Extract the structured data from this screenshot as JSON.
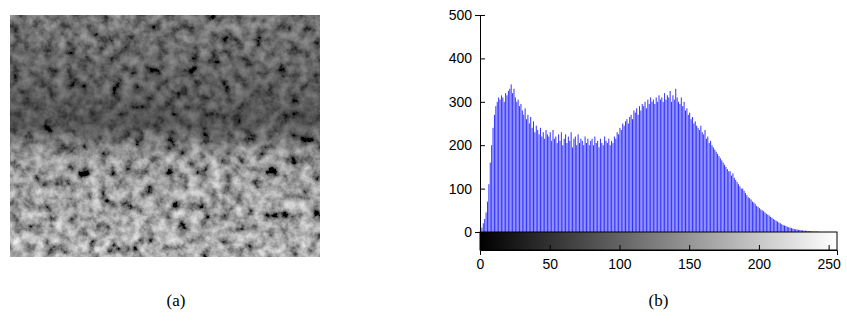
{
  "image_panel": {
    "caption": "(a)"
  },
  "chart_data": {
    "type": "histogram",
    "caption": "(b)",
    "color": "#3333ff",
    "xlim": [
      0,
      256
    ],
    "xticks": [
      0,
      50,
      100,
      150,
      200,
      250
    ],
    "ylim": [
      0,
      500
    ],
    "yticks": [
      0,
      100,
      200,
      300,
      400,
      500
    ],
    "bins": [
      0,
      1,
      2,
      3,
      4,
      5,
      6,
      7,
      8,
      9,
      10,
      11,
      12,
      13,
      14,
      15,
      16,
      17,
      18,
      19,
      20,
      21,
      22,
      23,
      24,
      25,
      26,
      27,
      28,
      29,
      30,
      31,
      32,
      33,
      34,
      35,
      36,
      37,
      38,
      39,
      40,
      41,
      42,
      43,
      44,
      45,
      46,
      47,
      48,
      49,
      50,
      51,
      52,
      53,
      54,
      55,
      56,
      57,
      58,
      59,
      60,
      61,
      62,
      63,
      64,
      65,
      66,
      67,
      68,
      69,
      70,
      71,
      72,
      73,
      74,
      75,
      76,
      77,
      78,
      79,
      80,
      81,
      82,
      83,
      84,
      85,
      86,
      87,
      88,
      89,
      90,
      91,
      92,
      93,
      94,
      95,
      96,
      97,
      98,
      99,
      100,
      101,
      102,
      103,
      104,
      105,
      106,
      107,
      108,
      109,
      110,
      111,
      112,
      113,
      114,
      115,
      116,
      117,
      118,
      119,
      120,
      121,
      122,
      123,
      124,
      125,
      126,
      127,
      128,
      129,
      130,
      131,
      132,
      133,
      134,
      135,
      136,
      137,
      138,
      139,
      140,
      141,
      142,
      143,
      144,
      145,
      146,
      147,
      148,
      149,
      150,
      151,
      152,
      153,
      154,
      155,
      156,
      157,
      158,
      159,
      160,
      161,
      162,
      163,
      164,
      165,
      166,
      167,
      168,
      169,
      170,
      171,
      172,
      173,
      174,
      175,
      176,
      177,
      178,
      179,
      180,
      181,
      182,
      183,
      184,
      185,
      186,
      187,
      188,
      189,
      190,
      191,
      192,
      193,
      194,
      195,
      196,
      197,
      198,
      199,
      200,
      201,
      202,
      203,
      204,
      205,
      206,
      207,
      208,
      209,
      210,
      211,
      212,
      213,
      214,
      215,
      216,
      217,
      218,
      219,
      220,
      221,
      222,
      223,
      224,
      225,
      226,
      227,
      228,
      229,
      230,
      231,
      232,
      233,
      234,
      235,
      236,
      237,
      238,
      239,
      240,
      241,
      242,
      243,
      244,
      245,
      246,
      247,
      248,
      249,
      250,
      251,
      252,
      253,
      254,
      255,
      256
    ],
    "values": [
      5,
      10,
      20,
      30,
      45,
      70,
      110,
      160,
      200,
      240,
      270,
      290,
      300,
      310,
      305,
      315,
      310,
      300,
      320,
      315,
      325,
      330,
      340,
      320,
      330,
      310,
      300,
      305,
      290,
      295,
      280,
      270,
      285,
      260,
      270,
      250,
      265,
      240,
      255,
      230,
      245,
      235,
      225,
      240,
      220,
      230,
      215,
      235,
      225,
      220,
      230,
      210,
      235,
      215,
      220,
      205,
      225,
      210,
      230,
      200,
      215,
      225,
      205,
      220,
      210,
      230,
      195,
      215,
      220,
      200,
      225,
      205,
      215,
      210,
      200,
      220,
      205,
      215,
      200,
      210,
      215,
      200,
      220,
      205,
      210,
      195,
      215,
      205,
      200,
      220,
      210,
      205,
      215,
      200,
      210,
      205,
      220,
      215,
      230,
      225,
      240,
      235,
      250,
      245,
      255,
      260,
      250,
      265,
      270,
      260,
      280,
      275,
      285,
      270,
      290,
      280,
      295,
      290,
      300,
      285,
      305,
      295,
      310,
      300,
      305,
      295,
      310,
      300,
      315,
      305,
      310,
      300,
      320,
      305,
      315,
      310,
      325,
      300,
      315,
      305,
      330,
      310,
      300,
      295,
      310,
      290,
      300,
      280,
      285,
      270,
      275,
      260,
      265,
      250,
      255,
      245,
      240,
      235,
      245,
      230,
      225,
      235,
      215,
      220,
      205,
      210,
      200,
      195,
      190,
      185,
      180,
      175,
      170,
      165,
      160,
      155,
      150,
      145,
      140,
      140,
      130,
      135,
      125,
      120,
      115,
      110,
      105,
      100,
      100,
      95,
      90,
      85,
      80,
      78,
      75,
      70,
      68,
      65,
      60,
      58,
      55,
      52,
      50,
      48,
      45,
      42,
      40,
      38,
      35,
      33,
      30,
      28,
      26,
      24,
      22,
      20,
      18,
      16,
      15,
      14,
      12,
      11,
      10,
      9,
      8,
      7,
      6,
      6,
      5,
      5,
      4,
      4,
      3,
      3,
      3,
      2,
      2,
      2,
      1,
      1,
      1,
      1,
      1,
      0,
      0,
      0,
      0,
      0,
      0,
      0,
      0,
      0,
      0,
      0,
      0,
      0
    ]
  }
}
